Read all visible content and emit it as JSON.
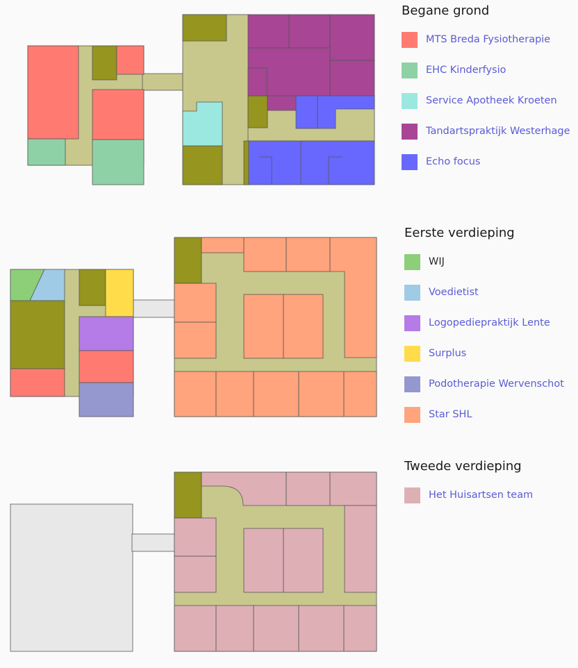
{
  "colors": {
    "corridor": "#c8c88c",
    "utility": "#95951f",
    "neutral": "#e8e8e8",
    "stroke": "#555555"
  },
  "floors": [
    {
      "title": "Begane grond",
      "legend": [
        {
          "label": "MTS Breda Fysiotherapie",
          "color": "#ff7b72",
          "link": true
        },
        {
          "label": "EHC Kinderfysio",
          "color": "#8fd1a6",
          "link": true
        },
        {
          "label": "Service Apotheek Kroeten",
          "color": "#9be8e0",
          "link": true
        },
        {
          "label": "Tandartspraktijk Westerhage",
          "color": "#a84595",
          "link": true
        },
        {
          "label": "Echo focus",
          "color": "#6868ff",
          "link": true
        }
      ]
    },
    {
      "title": "Eerste verdieping",
      "legend": [
        {
          "label": "WIJ",
          "color": "#8ccf78",
          "link": false
        },
        {
          "label": "Voedietist",
          "color": "#9fcbe6",
          "link": true
        },
        {
          "label": "Logopediepraktijk Lente",
          "color": "#b57be6",
          "link": true
        },
        {
          "label": "Surplus",
          "color": "#ffdc4a",
          "link": true
        },
        {
          "label": "Podotherapie Wervenschot",
          "color": "#9597cf",
          "link": true
        },
        {
          "label": "Star SHL",
          "color": "#ffa47c",
          "link": true
        }
      ]
    },
    {
      "title": "Tweede verdieping",
      "legend": [
        {
          "label": "Het Huisartsen team",
          "color": "#deb0b6",
          "link": true
        }
      ]
    }
  ]
}
